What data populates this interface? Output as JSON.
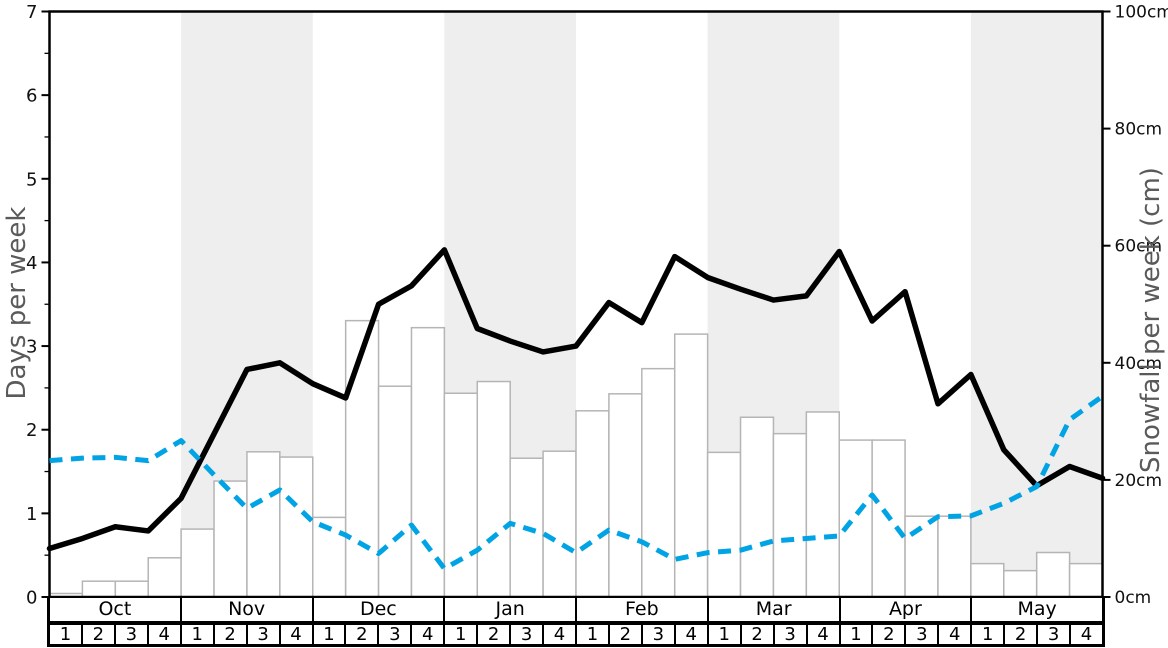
{
  "chart_data": {
    "type": "combo",
    "title": "",
    "months": [
      "Oct",
      "Nov",
      "Dec",
      "Jan",
      "Feb",
      "Mar",
      "Apr",
      "May"
    ],
    "week_labels": [
      "1",
      "2",
      "3",
      "4"
    ],
    "shaded_month_indices": [
      1,
      3,
      5,
      7
    ],
    "left_axis": {
      "label": "Days per week",
      "min": 0,
      "max": 7,
      "tick_labels": [
        "0",
        "1",
        "2",
        "3",
        "4",
        "5",
        "6",
        "7"
      ],
      "minor_tick_step": 0.5
    },
    "right_axis": {
      "label": "Snowfall per week (cm)",
      "min": 0,
      "max": 100,
      "tick_values": [
        0,
        20,
        40,
        60,
        80,
        100
      ],
      "tick_labels": [
        "0cm",
        "20cm",
        "40cm",
        "60cm",
        "80cm",
        "100cm"
      ]
    },
    "series": [
      {
        "name": "snowfall-bars",
        "type": "bar",
        "axis": "right",
        "unit": "cm",
        "fill": "#ffffff",
        "border": "#b5b5b5",
        "values": [
          0.6,
          2.7,
          2.7,
          6.7,
          11.6,
          19.8,
          24.8,
          23.9,
          13.6,
          47.2,
          36.0,
          46.0,
          34.8,
          36.8,
          23.7,
          24.9,
          31.8,
          34.7,
          39.0,
          44.9,
          24.7,
          30.7,
          27.9,
          31.6,
          26.8,
          26.8,
          13.8,
          13.8,
          5.7,
          4.5,
          7.6,
          5.7
        ]
      },
      {
        "name": "black-solid-line",
        "type": "line",
        "style": "solid",
        "axis": "left",
        "unit": "days",
        "color": "#000000",
        "values": [
          0.58,
          0.7,
          0.84,
          0.79,
          1.18,
          1.95,
          2.72,
          2.8,
          2.55,
          2.38,
          3.5,
          3.72,
          4.15,
          3.21,
          3.06,
          2.93,
          3.0,
          3.52,
          3.28,
          4.07,
          3.82,
          3.68,
          3.55,
          3.6,
          4.13,
          3.3,
          3.65,
          2.31,
          2.66,
          1.76,
          1.33,
          1.56,
          1.42
        ]
      },
      {
        "name": "blue-dashed-line",
        "type": "line",
        "style": "dashed",
        "axis": "left",
        "unit": "days",
        "color": "#00a3e4",
        "values": [
          1.63,
          1.66,
          1.67,
          1.63,
          1.87,
          1.46,
          1.06,
          1.28,
          0.9,
          0.74,
          0.52,
          0.86,
          0.34,
          0.56,
          0.88,
          0.76,
          0.53,
          0.8,
          0.66,
          0.45,
          0.53,
          0.56,
          0.67,
          0.7,
          0.73,
          1.22,
          0.7,
          0.96,
          0.97,
          1.12,
          1.32,
          2.12,
          2.4
        ]
      }
    ],
    "plot_background": "#ffffff",
    "band_color": "#eeeeee",
    "legend": "none",
    "grid": "off"
  }
}
